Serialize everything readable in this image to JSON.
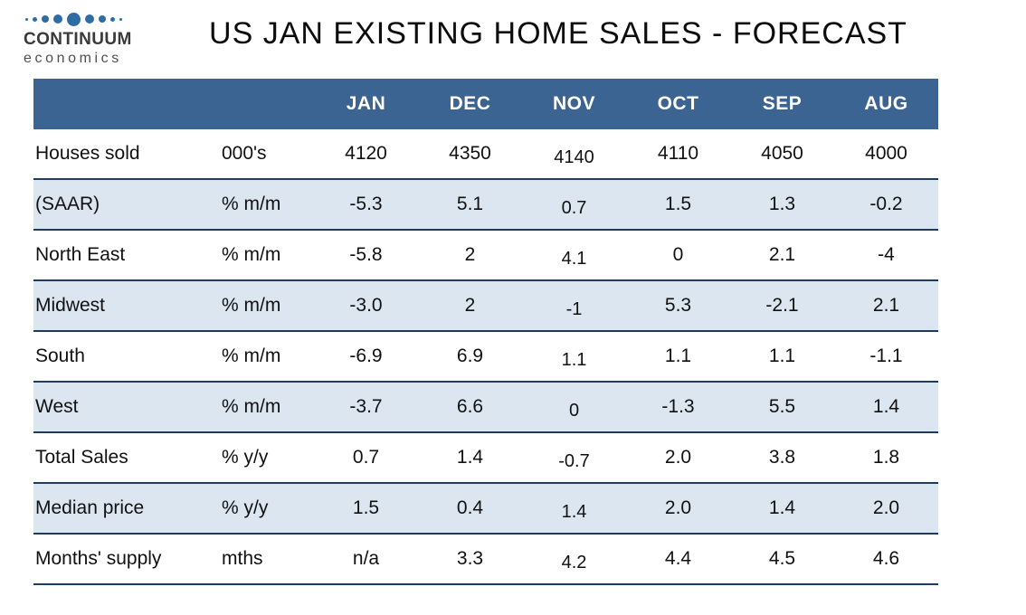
{
  "logo": {
    "line1": "CONTINUUM",
    "line2": "economics",
    "dot_sizes": [
      3,
      5,
      8,
      10,
      15,
      10,
      8,
      5,
      3
    ],
    "dot_color": "#2E6DA4"
  },
  "title": "US JAN EXISTING HOME SALES - FORECAST",
  "colors": {
    "header_bg": "#3B6493",
    "alt_row_bg": "#DCE6F1",
    "row_border": "#1F3C5F",
    "header_text": "#FFFFFF"
  },
  "chart_data": {
    "type": "table",
    "title": "US JAN EXISTING HOME SALES - FORECAST",
    "columns": [
      "JAN",
      "DEC",
      "NOV",
      "OCT",
      "SEP",
      "AUG"
    ],
    "rows": [
      {
        "label": "Houses sold",
        "unit": "000's",
        "values": [
          "4120",
          "4350",
          "4140",
          "4110",
          "4050",
          "4000"
        ]
      },
      {
        "label": "(SAAR)",
        "unit": "% m/m",
        "values": [
          "-5.3",
          "5.1",
          "0.7",
          "1.5",
          "1.3",
          "-0.2"
        ]
      },
      {
        "label": "North East",
        "unit": "% m/m",
        "values": [
          "-5.8",
          "2",
          "4.1",
          "0",
          "2.1",
          "-4"
        ]
      },
      {
        "label": "Midwest",
        "unit": "% m/m",
        "values": [
          "-3.0",
          "2",
          "-1",
          "5.3",
          "-2.1",
          "2.1"
        ]
      },
      {
        "label": "South",
        "unit": "% m/m",
        "values": [
          "-6.9",
          "6.9",
          "1.1",
          "1.1",
          "1.1",
          "-1.1"
        ]
      },
      {
        "label": "West",
        "unit": "% m/m",
        "values": [
          "-3.7",
          "6.6",
          "0",
          "-1.3",
          "5.5",
          "1.4"
        ]
      },
      {
        "label": "Total Sales",
        "unit": "% y/y",
        "values": [
          "0.7",
          "1.4",
          "-0.7",
          "2.0",
          "3.8",
          "1.8"
        ]
      },
      {
        "label": "Median price",
        "unit": "% y/y",
        "values": [
          "1.5",
          "0.4",
          "1.4",
          "2.0",
          "1.4",
          "2.0"
        ]
      },
      {
        "label": "Months' supply",
        "unit": "mths",
        "values": [
          "n/a",
          "3.3",
          "4.2",
          "4.4",
          "4.5",
          "4.6"
        ]
      }
    ]
  }
}
